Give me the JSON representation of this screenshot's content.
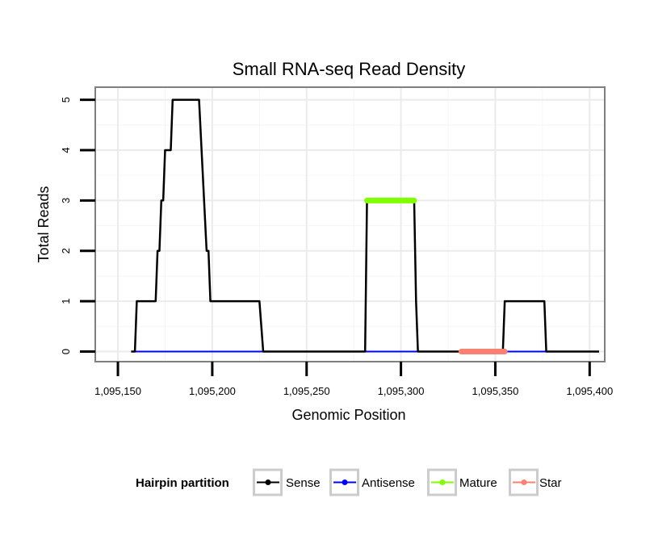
{
  "chart_data": {
    "type": "line",
    "title": "Small RNA-seq Read Density",
    "xlabel": "Genomic Position",
    "ylabel": "Total Reads",
    "xlim": [
      1095138,
      1095408
    ],
    "ylim": [
      -0.2,
      5.25
    ],
    "x_ticks": [
      1095150,
      1095200,
      1095250,
      1095300,
      1095350,
      1095400
    ],
    "x_tick_labels": [
      "1,095,150",
      "1,095,200",
      "1,095,250",
      "1,095,300",
      "1,095,350",
      "1,095,400"
    ],
    "y_ticks": [
      0,
      1,
      2,
      3,
      4,
      5
    ],
    "y_tick_labels": [
      "0",
      "1",
      "2",
      "3",
      "4",
      "5"
    ],
    "grid": true,
    "legend": {
      "title": "Hairpin partition",
      "position": "bottom",
      "entries": [
        "Sense",
        "Antisense",
        "Mature",
        "Star"
      ]
    },
    "series": [
      {
        "name": "Sense",
        "color": "#000000",
        "points": [
          [
            1095157,
            0
          ],
          [
            1095159,
            0
          ],
          [
            1095160,
            1
          ],
          [
            1095170,
            1
          ],
          [
            1095171,
            2
          ],
          [
            1095172,
            2
          ],
          [
            1095173,
            3
          ],
          [
            1095174,
            3
          ],
          [
            1095175,
            4
          ],
          [
            1095178,
            4
          ],
          [
            1095179,
            5
          ],
          [
            1095193,
            5
          ],
          [
            1095197,
            2
          ],
          [
            1095198,
            2
          ],
          [
            1095199,
            1
          ],
          [
            1095225,
            1
          ],
          [
            1095227,
            0
          ],
          [
            1095281,
            0
          ],
          [
            1095282,
            3
          ],
          [
            1095307,
            3
          ],
          [
            1095308,
            1
          ],
          [
            1095309,
            0
          ],
          [
            1095354,
            0
          ],
          [
            1095355,
            1
          ],
          [
            1095376,
            1
          ],
          [
            1095377,
            0
          ],
          [
            1095405,
            0
          ]
        ]
      },
      {
        "name": "Antisense",
        "color": "#0000ff",
        "points": [
          [
            1095158,
            0
          ],
          [
            1095227,
            0
          ],
          [
            1095282,
            0
          ],
          [
            1095309,
            0
          ],
          [
            1095333,
            0
          ],
          [
            1095377,
            0
          ]
        ]
      },
      {
        "name": "Mature",
        "color": "#7fff00",
        "points": [
          [
            1095282,
            3
          ],
          [
            1095307,
            3
          ]
        ]
      },
      {
        "name": "Star",
        "color": "#fa8072",
        "points": [
          [
            1095332,
            0
          ],
          [
            1095355,
            0
          ]
        ]
      }
    ]
  }
}
